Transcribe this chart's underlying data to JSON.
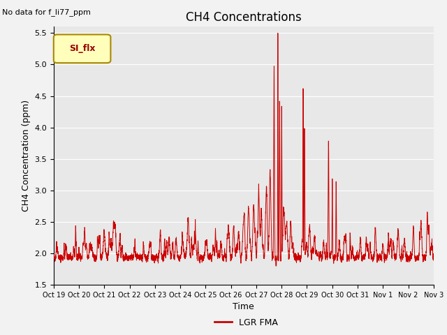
{
  "title": "CH4 Concentrations",
  "ylabel": "CH4 Concentration (ppm)",
  "xlabel": "Time",
  "top_left_text": "No data for f_li77_ppm",
  "legend_label": "LGR FMA",
  "legend_box_label": "SI_flx",
  "ylim": [
    1.5,
    5.6
  ],
  "yticks": [
    1.5,
    2.0,
    2.5,
    3.0,
    3.5,
    4.0,
    4.5,
    5.0,
    5.5
  ],
  "line_color": "#cc0000",
  "bg_color": "#e8e8e8",
  "fig_bg_color": "#f2f2f2",
  "title_fontsize": 12,
  "label_fontsize": 9,
  "tick_fontsize": 8,
  "xtick_labels": [
    "Oct 19",
    "Oct 20",
    "Oct 21",
    "Oct 22",
    "Oct 23",
    "Oct 24",
    "Oct 25",
    "Oct 26",
    "Oct 27",
    "Oct 28",
    "Oct 29",
    "Oct 30",
    "Oct 31",
    "Nov 1",
    "Nov 2",
    "Nov 3"
  ]
}
